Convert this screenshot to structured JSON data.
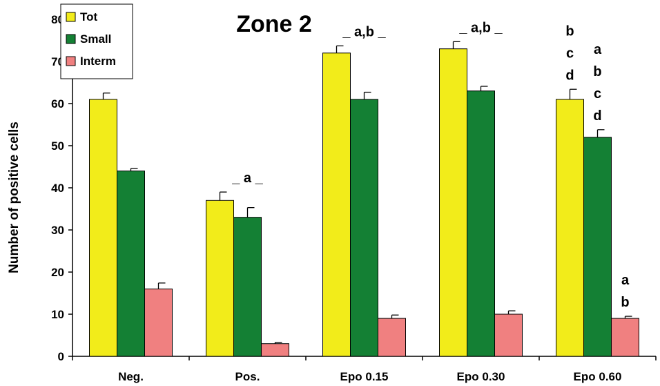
{
  "chart_data": {
    "type": "bar",
    "title": "Zone 2",
    "xlabel": "",
    "ylabel": "Number of positive cells",
    "ylim": [
      0,
      80
    ],
    "yticks": [
      0,
      10,
      20,
      30,
      40,
      50,
      60,
      70,
      80
    ],
    "grid": false,
    "legend_position": "top-left",
    "categories": [
      "Neg.",
      "Pos.",
      "Epo 0.15",
      "Epo 0.30",
      "Epo 0.60"
    ],
    "series": [
      {
        "name": "Tot",
        "color": "#f2ec1a",
        "values": [
          61,
          37,
          72,
          73,
          61
        ],
        "errors": [
          1.5,
          2.0,
          1.7,
          1.7,
          2.4
        ]
      },
      {
        "name": "Small",
        "color": "#148034",
        "values": [
          44,
          33,
          61,
          63,
          52
        ],
        "errors": [
          0.6,
          2.3,
          1.7,
          1.1,
          1.8
        ]
      },
      {
        "name": "Interm",
        "color": "#f08080",
        "values": [
          16,
          3,
          9,
          10,
          9
        ],
        "errors": [
          1.4,
          0.3,
          0.8,
          0.8,
          0.5
        ]
      }
    ],
    "annotations": [
      {
        "category": 1,
        "lines": [
          "_  a  _"
        ]
      },
      {
        "category": 2,
        "lines": [
          "_  a,b  _"
        ]
      },
      {
        "category": 3,
        "lines": [
          "_  a,b  _"
        ]
      },
      {
        "category": 4,
        "series": 0,
        "lines": [
          "b",
          "c",
          "d"
        ]
      },
      {
        "category": 4,
        "series": 1,
        "lines": [
          "a",
          "b",
          "c",
          "d"
        ]
      },
      {
        "category": 4,
        "series": 2,
        "lines": [
          "a",
          "b"
        ]
      }
    ]
  }
}
